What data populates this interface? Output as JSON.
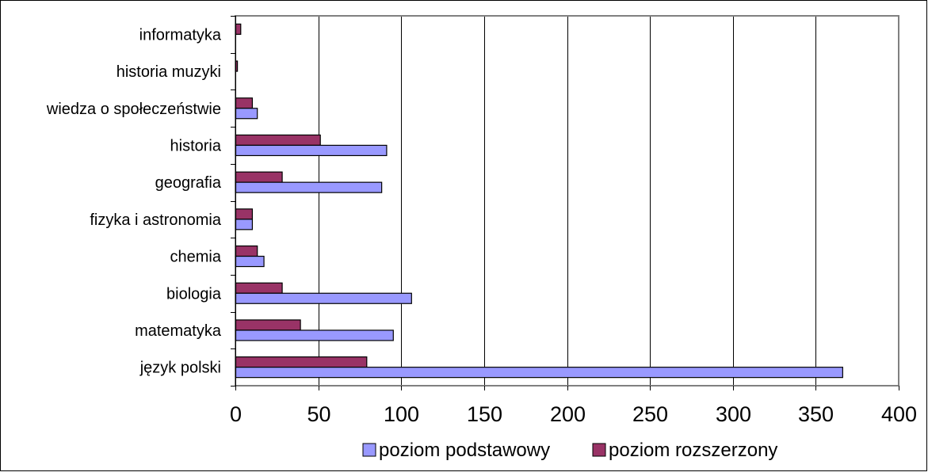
{
  "chart_data": {
    "type": "bar",
    "orientation": "horizontal",
    "categories": [
      "język polski",
      "matematyka",
      "biologia",
      "chemia",
      "fizyka i astronomia",
      "geografia",
      "historia",
      "wiedza o społeczeństwie",
      "historia muzyki",
      "informatyka"
    ],
    "series": [
      {
        "name": "poziom podstawowy",
        "color": "#9999ff",
        "values": [
          366,
          95,
          106,
          17,
          10,
          88,
          91,
          13,
          0,
          0
        ]
      },
      {
        "name": "poziom rozszerzony",
        "color": "#993366",
        "values": [
          79,
          39,
          28,
          13,
          10,
          28,
          51,
          10,
          1,
          3
        ]
      }
    ],
    "xlim": [
      0,
      400
    ],
    "xticks": [
      "0",
      "50",
      "100",
      "150",
      "200",
      "250",
      "300",
      "350",
      "400"
    ],
    "grid": "vertical",
    "legend_position": "bottom",
    "plot_border_color": "#808080",
    "gridline_color": "#000000"
  }
}
